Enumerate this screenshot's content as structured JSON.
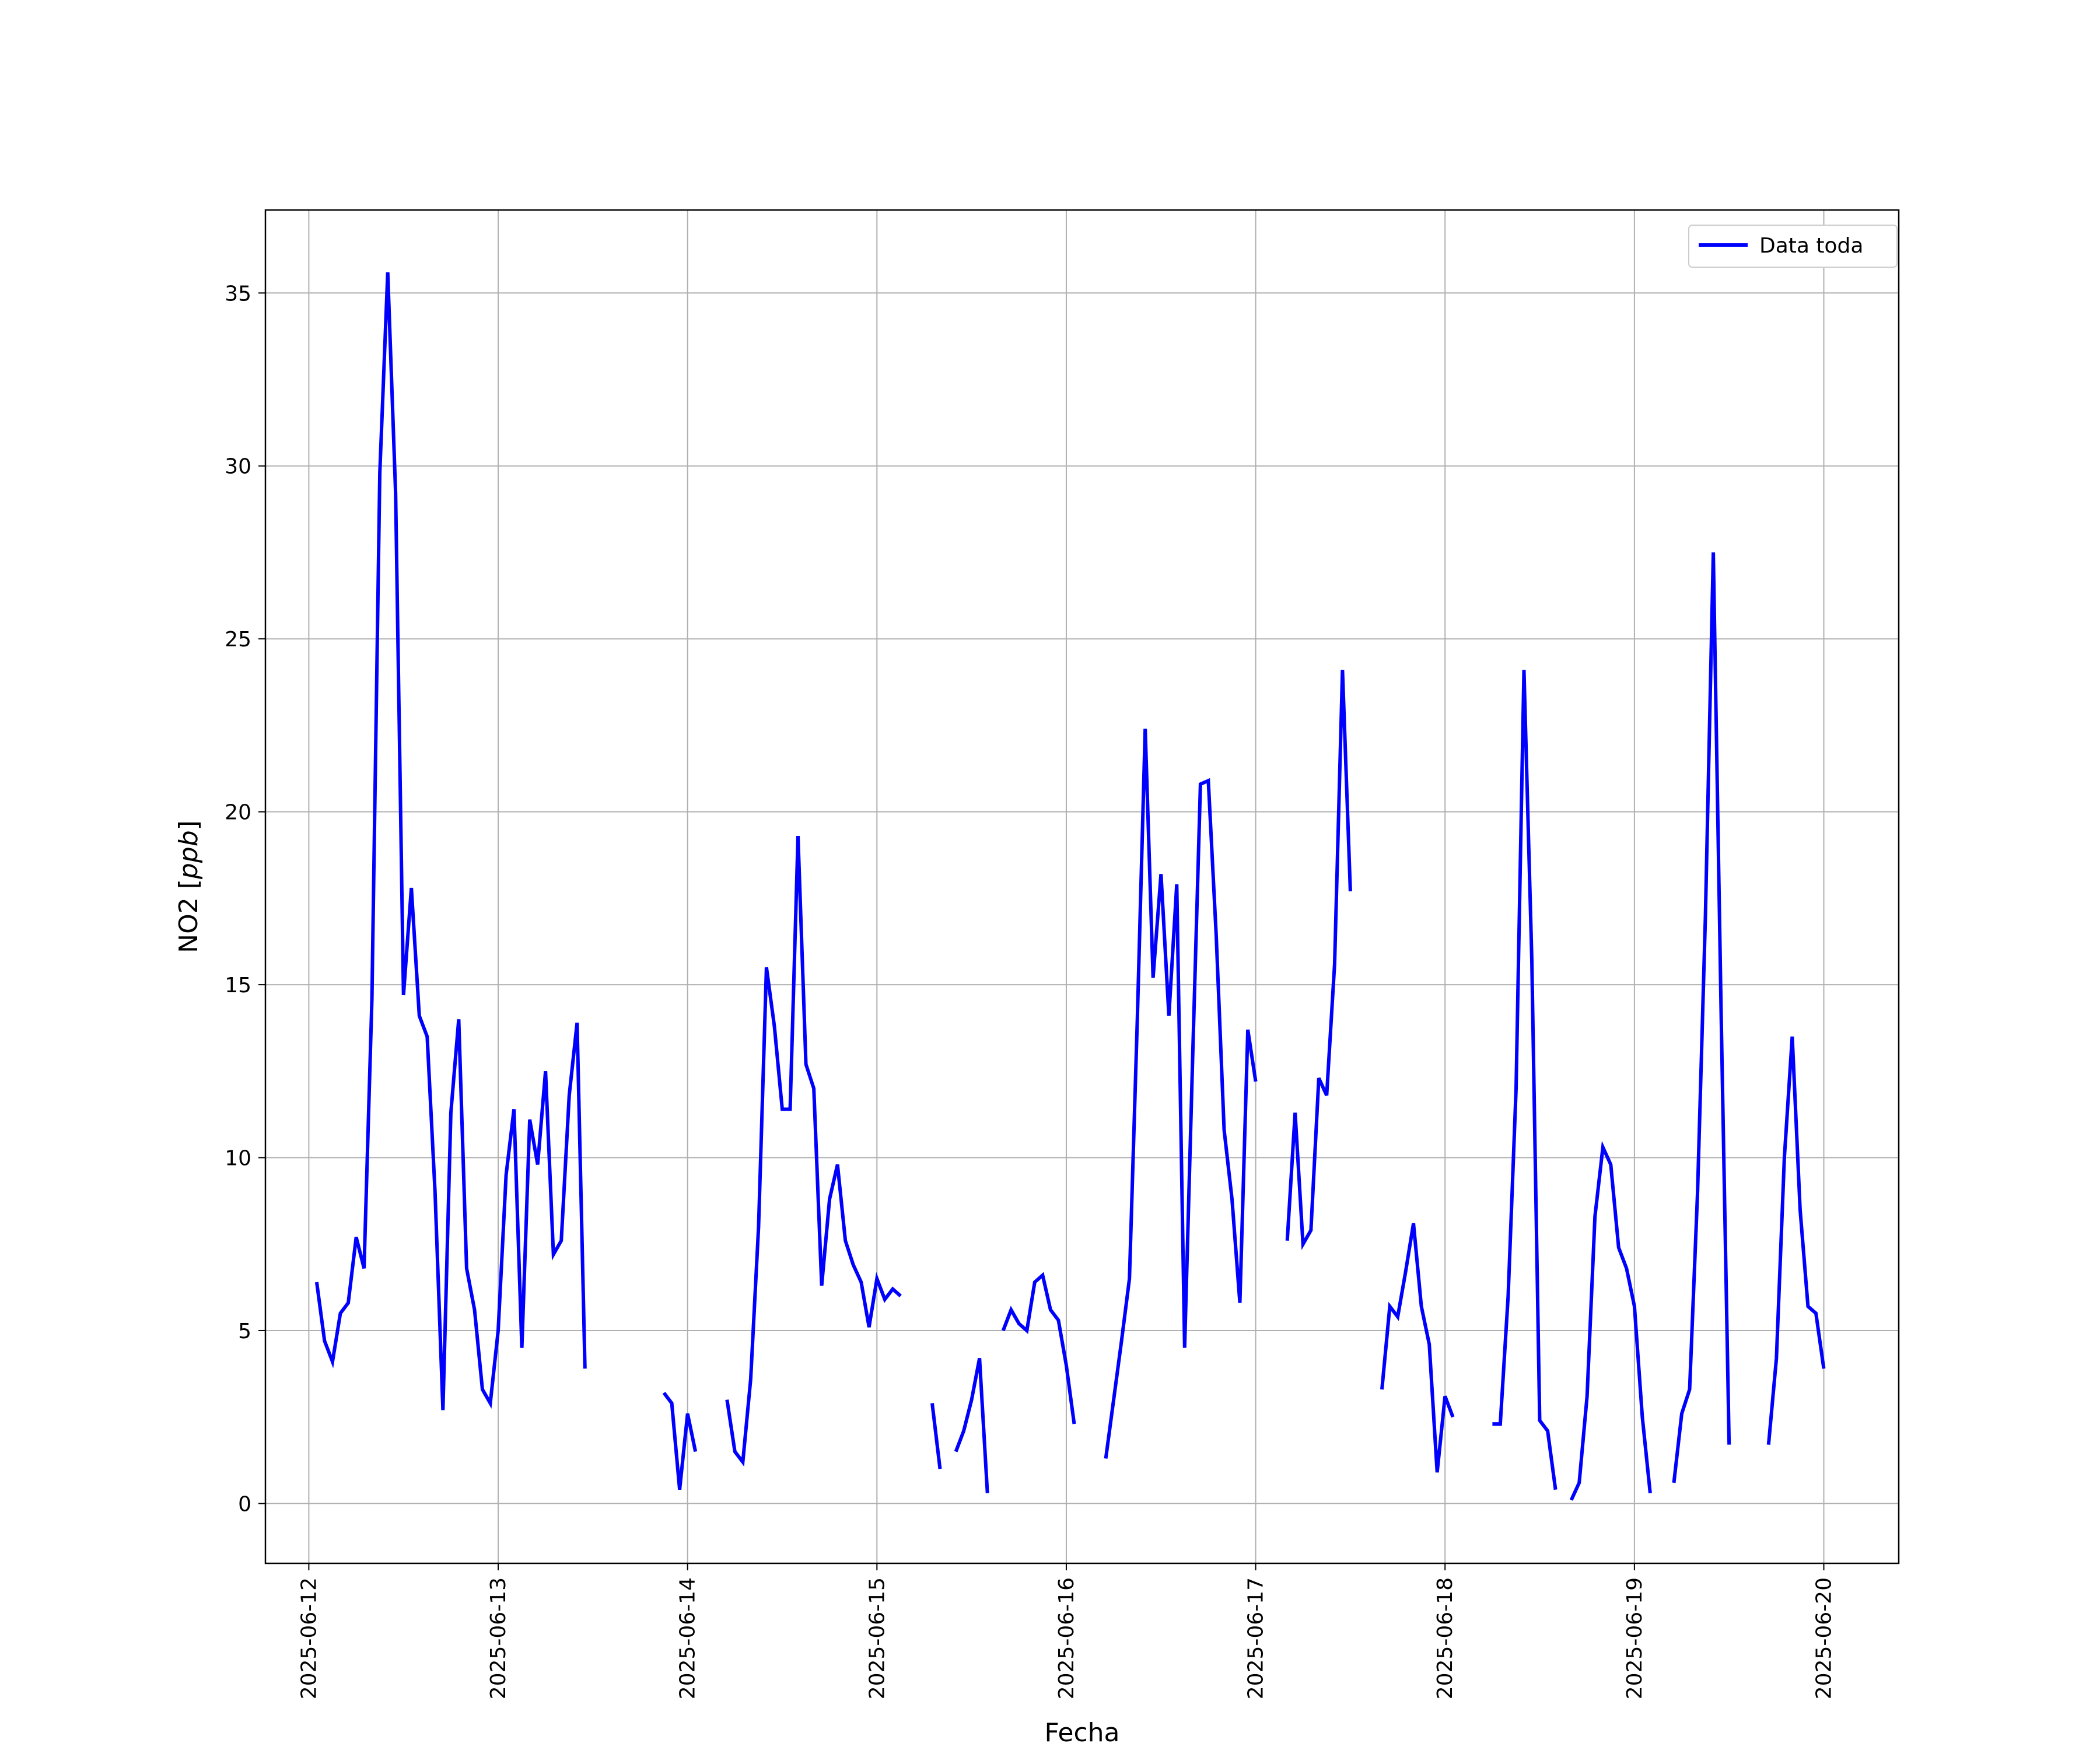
{
  "chart_data": {
    "type": "line",
    "title": "",
    "xlabel": "Fecha",
    "ylabel": "NO2 [ppb]",
    "ylabel_prefix": "NO2 [",
    "ylabel_unit": "ppb",
    "ylabel_suffix": "]",
    "xlim": [
      "2025-06-11T18:30",
      "2025-06-20T09:30"
    ],
    "ylim": [
      -1.73,
      37.4
    ],
    "grid": true,
    "legend_position": "top-right",
    "x_ticks": [
      "2025-06-12",
      "2025-06-13",
      "2025-06-14",
      "2025-06-15",
      "2025-06-16",
      "2025-06-17",
      "2025-06-18",
      "2025-06-19",
      "2025-06-20"
    ],
    "y_ticks": [
      0,
      5,
      10,
      15,
      20,
      25,
      30,
      35
    ],
    "series": [
      {
        "name": "Data toda",
        "color": "#0000ff",
        "points": [
          [
            "2025-06-12T01:00",
            6.4
          ],
          [
            "2025-06-12T02:00",
            4.7
          ],
          [
            "2025-06-12T03:00",
            4.1
          ],
          [
            "2025-06-12T04:00",
            5.5
          ],
          [
            "2025-06-12T05:00",
            5.8
          ],
          [
            "2025-06-12T06:00",
            7.7
          ],
          [
            "2025-06-12T07:00",
            6.8
          ],
          [
            "2025-06-12T08:00",
            14.6
          ],
          [
            "2025-06-12T09:00",
            29.8
          ],
          [
            "2025-06-12T10:00",
            35.6
          ],
          [
            "2025-06-12T11:00",
            29.2
          ],
          [
            "2025-06-12T12:00",
            14.7
          ],
          [
            "2025-06-12T13:00",
            17.8
          ],
          [
            "2025-06-12T14:00",
            14.1
          ],
          [
            "2025-06-12T15:00",
            13.5
          ],
          [
            "2025-06-12T16:00",
            9.0
          ],
          [
            "2025-06-12T17:00",
            2.7
          ],
          [
            "2025-06-12T18:00",
            11.3
          ],
          [
            "2025-06-12T19:00",
            14.0
          ],
          [
            "2025-06-12T20:00",
            6.8
          ],
          [
            "2025-06-12T21:00",
            5.6
          ],
          [
            "2025-06-12T22:00",
            3.3
          ],
          [
            "2025-06-12T23:00",
            2.9
          ],
          [
            "2025-06-13T00:00",
            5.0
          ],
          [
            "2025-06-13T01:00",
            9.5
          ],
          [
            "2025-06-13T02:00",
            11.4
          ],
          [
            "2025-06-13T03:00",
            4.5
          ],
          [
            "2025-06-13T04:00",
            11.1
          ],
          [
            "2025-06-13T05:00",
            9.8
          ],
          [
            "2025-06-13T06:00",
            12.5
          ],
          [
            "2025-06-13T07:00",
            7.2
          ],
          [
            "2025-06-13T08:00",
            7.6
          ],
          [
            "2025-06-13T09:00",
            11.8
          ],
          [
            "2025-06-13T10:00",
            13.9
          ],
          [
            "2025-06-13T11:00",
            3.9
          ],
          null,
          [
            "2025-06-13T21:00",
            3.2
          ],
          [
            "2025-06-13T22:00",
            2.9
          ],
          [
            "2025-06-13T23:00",
            0.4
          ],
          [
            "2025-06-14T00:00",
            2.6
          ],
          [
            "2025-06-14T01:00",
            1.5
          ],
          null,
          [
            "2025-06-14T05:00",
            3.0
          ],
          [
            "2025-06-14T06:00",
            1.5
          ],
          [
            "2025-06-14T07:00",
            1.2
          ],
          [
            "2025-06-14T08:00",
            3.6
          ],
          [
            "2025-06-14T09:00",
            8.0
          ],
          [
            "2025-06-14T10:00",
            15.5
          ],
          [
            "2025-06-14T11:00",
            13.8
          ],
          [
            "2025-06-14T12:00",
            11.4
          ],
          [
            "2025-06-14T13:00",
            11.4
          ],
          [
            "2025-06-14T14:00",
            19.3
          ],
          [
            "2025-06-14T15:00",
            12.7
          ],
          [
            "2025-06-14T16:00",
            12.0
          ],
          [
            "2025-06-14T17:00",
            6.3
          ],
          [
            "2025-06-14T18:00",
            8.8
          ],
          [
            "2025-06-14T19:00",
            9.8
          ],
          [
            "2025-06-14T20:00",
            7.6
          ],
          [
            "2025-06-14T21:00",
            6.9
          ],
          [
            "2025-06-14T22:00",
            6.4
          ],
          [
            "2025-06-14T23:00",
            5.1
          ],
          [
            "2025-06-15T00:00",
            6.5
          ],
          [
            "2025-06-15T01:00",
            5.9
          ],
          [
            "2025-06-15T02:00",
            6.2
          ],
          [
            "2025-06-15T03:00",
            6.0
          ],
          null,
          [
            "2025-06-15T07:00",
            2.9
          ],
          [
            "2025-06-15T08:00",
            1.0
          ],
          null,
          [
            "2025-06-15T10:00",
            1.5
          ],
          [
            "2025-06-15T11:00",
            2.1
          ],
          [
            "2025-06-15T12:00",
            3.0
          ],
          [
            "2025-06-15T13:00",
            4.2
          ],
          [
            "2025-06-15T14:00",
            0.3
          ],
          null,
          [
            "2025-06-15T16:00",
            5.0
          ],
          [
            "2025-06-15T17:00",
            5.6
          ],
          [
            "2025-06-15T18:00",
            5.2
          ],
          [
            "2025-06-15T19:00",
            5.0
          ],
          [
            "2025-06-15T20:00",
            6.4
          ],
          [
            "2025-06-15T21:00",
            6.6
          ],
          [
            "2025-06-15T22:00",
            5.6
          ],
          [
            "2025-06-15T23:00",
            5.3
          ],
          [
            "2025-06-16T00:00",
            4.0
          ],
          [
            "2025-06-16T01:00",
            2.3
          ],
          null,
          [
            "2025-06-16T05:00",
            1.3
          ],
          [
            "2025-06-16T06:00",
            3.0
          ],
          [
            "2025-06-16T07:00",
            4.7
          ],
          [
            "2025-06-16T08:00",
            6.5
          ],
          [
            "2025-06-16T09:00",
            14.0
          ],
          [
            "2025-06-16T10:00",
            22.4
          ],
          [
            "2025-06-16T11:00",
            15.2
          ],
          [
            "2025-06-16T12:00",
            18.2
          ],
          [
            "2025-06-16T13:00",
            14.1
          ],
          [
            "2025-06-16T14:00",
            17.9
          ],
          [
            "2025-06-16T15:00",
            4.5
          ],
          [
            "2025-06-16T16:00",
            12.8
          ],
          [
            "2025-06-16T17:00",
            20.8
          ],
          [
            "2025-06-16T18:00",
            20.9
          ],
          [
            "2025-06-16T19:00",
            16.4
          ],
          [
            "2025-06-16T20:00",
            10.8
          ],
          [
            "2025-06-16T21:00",
            8.8
          ],
          [
            "2025-06-16T22:00",
            5.8
          ],
          [
            "2025-06-16T23:00",
            13.7
          ],
          [
            "2025-06-17T00:00",
            12.2
          ],
          null,
          [
            "2025-06-17T04:00",
            7.6
          ],
          [
            "2025-06-17T05:00",
            11.3
          ],
          [
            "2025-06-17T06:00",
            7.5
          ],
          [
            "2025-06-17T07:00",
            7.9
          ],
          [
            "2025-06-17T08:00",
            12.3
          ],
          [
            "2025-06-17T09:00",
            11.8
          ],
          [
            "2025-06-17T10:00",
            15.6
          ],
          [
            "2025-06-17T11:00",
            24.1
          ],
          [
            "2025-06-17T12:00",
            17.7
          ],
          null,
          [
            "2025-06-17T16:00",
            3.3
          ],
          [
            "2025-06-17T17:00",
            5.7
          ],
          [
            "2025-06-17T18:00",
            5.4
          ],
          [
            "2025-06-17T19:00",
            6.7
          ],
          [
            "2025-06-17T20:00",
            8.1
          ],
          [
            "2025-06-17T21:00",
            5.7
          ],
          [
            "2025-06-17T22:00",
            4.6
          ],
          [
            "2025-06-17T23:00",
            0.9
          ],
          [
            "2025-06-18T00:00",
            3.1
          ],
          [
            "2025-06-18T01:00",
            2.5
          ],
          null,
          [
            "2025-06-18T06:00",
            2.3
          ],
          [
            "2025-06-18T07:00",
            2.3
          ],
          [
            "2025-06-18T08:00",
            6.0
          ],
          [
            "2025-06-18T09:00",
            12.0
          ],
          [
            "2025-06-18T10:00",
            24.1
          ],
          [
            "2025-06-18T11:00",
            15.7
          ],
          [
            "2025-06-18T12:00",
            2.4
          ],
          [
            "2025-06-18T13:00",
            2.1
          ],
          [
            "2025-06-18T14:00",
            0.4
          ],
          null,
          [
            "2025-06-18T16:00",
            0.1
          ],
          [
            "2025-06-18T17:00",
            0.6
          ],
          [
            "2025-06-18T18:00",
            3.1
          ],
          [
            "2025-06-18T19:00",
            8.3
          ],
          [
            "2025-06-18T20:00",
            10.3
          ],
          [
            "2025-06-18T21:00",
            9.8
          ],
          [
            "2025-06-18T22:00",
            7.4
          ],
          [
            "2025-06-18T23:00",
            6.8
          ],
          [
            "2025-06-19T00:00",
            5.7
          ],
          [
            "2025-06-19T01:00",
            2.5
          ],
          [
            "2025-06-19T02:00",
            0.3
          ],
          null,
          [
            "2025-06-19T05:00",
            0.6
          ],
          [
            "2025-06-19T06:00",
            2.6
          ],
          [
            "2025-06-19T07:00",
            3.3
          ],
          [
            "2025-06-19T08:00",
            9.0
          ],
          [
            "2025-06-19T09:00",
            17.0
          ],
          [
            "2025-06-19T10:00",
            27.5
          ],
          [
            "2025-06-19T11:00",
            14.0
          ],
          [
            "2025-06-19T12:00",
            1.7
          ],
          null,
          [
            "2025-06-19T17:00",
            1.7
          ],
          [
            "2025-06-19T18:00",
            4.2
          ],
          [
            "2025-06-19T19:00",
            10.0
          ],
          [
            "2025-06-19T20:00",
            13.5
          ],
          [
            "2025-06-19T21:00",
            8.5
          ],
          [
            "2025-06-19T22:00",
            5.7
          ],
          [
            "2025-06-19T23:00",
            5.5
          ],
          [
            "2025-06-20T00:00",
            3.9
          ]
        ]
      }
    ]
  }
}
